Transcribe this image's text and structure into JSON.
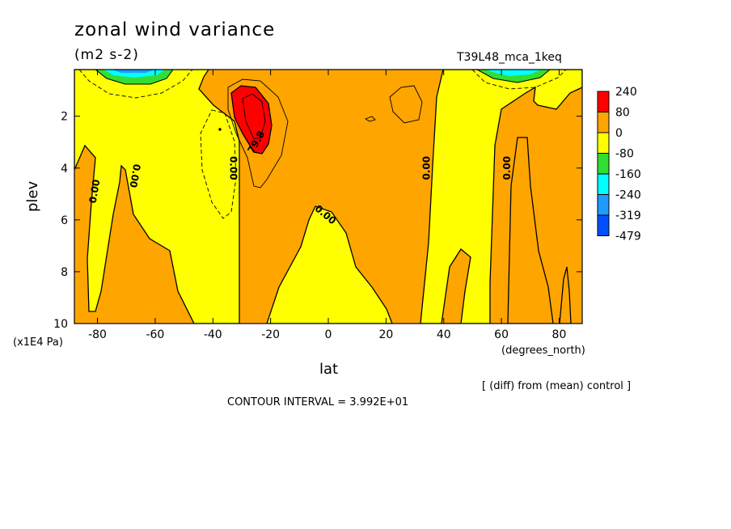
{
  "title": "zonal wind variance",
  "units": "(m2 s-2)",
  "experiment": "T39L48_mca_1keq",
  "y_unit_label": "(x1E4 Pa)",
  "x_unit_label": "(degrees_north)",
  "comparison_note": "[ (diff) from (mean) control ]",
  "contour_interval": "CONTOUR INTERVAL = 3.992E+01",
  "chart_data": {
    "type": "heatmap",
    "title": "zonal wind variance",
    "xlabel": "lat",
    "ylabel": "plev",
    "xlim": [
      -88,
      88
    ],
    "ylim": [
      10,
      0.2
    ],
    "x_ticks": [
      -80,
      -60,
      -40,
      -20,
      0,
      20,
      40,
      60,
      80
    ],
    "y_ticks": [
      2,
      4,
      6,
      8,
      10
    ],
    "legend": {
      "placement": "right",
      "levels": [
        "240",
        "80",
        "0",
        "-80",
        "-160",
        "-240",
        "-319",
        "-479"
      ],
      "colors": [
        "#ff0000",
        "#ffa500",
        "#ffff00",
        "#33dd33",
        "#00ffff",
        "#1e9bff",
        "#0050ff"
      ]
    },
    "contour_labels": [
      {
        "text": "0.00",
        "x": -81,
        "y": 4.9,
        "angle": -80
      },
      {
        "text": "0.00",
        "x": -67,
        "y": 4.3,
        "angle": 100
      },
      {
        "text": "0.00",
        "x": -33,
        "y": 4.0,
        "angle": 90
      },
      {
        "text": "79.8",
        "x": -25,
        "y": 3.0,
        "angle": -60
      },
      {
        "text": "0.00",
        "x": -1,
        "y": 5.8,
        "angle": 40
      },
      {
        "text": "0.00",
        "x": 34,
        "y": 4.0,
        "angle": -90
      },
      {
        "text": "0.00",
        "x": 62,
        "y": 4.0,
        "angle": -90
      }
    ]
  }
}
